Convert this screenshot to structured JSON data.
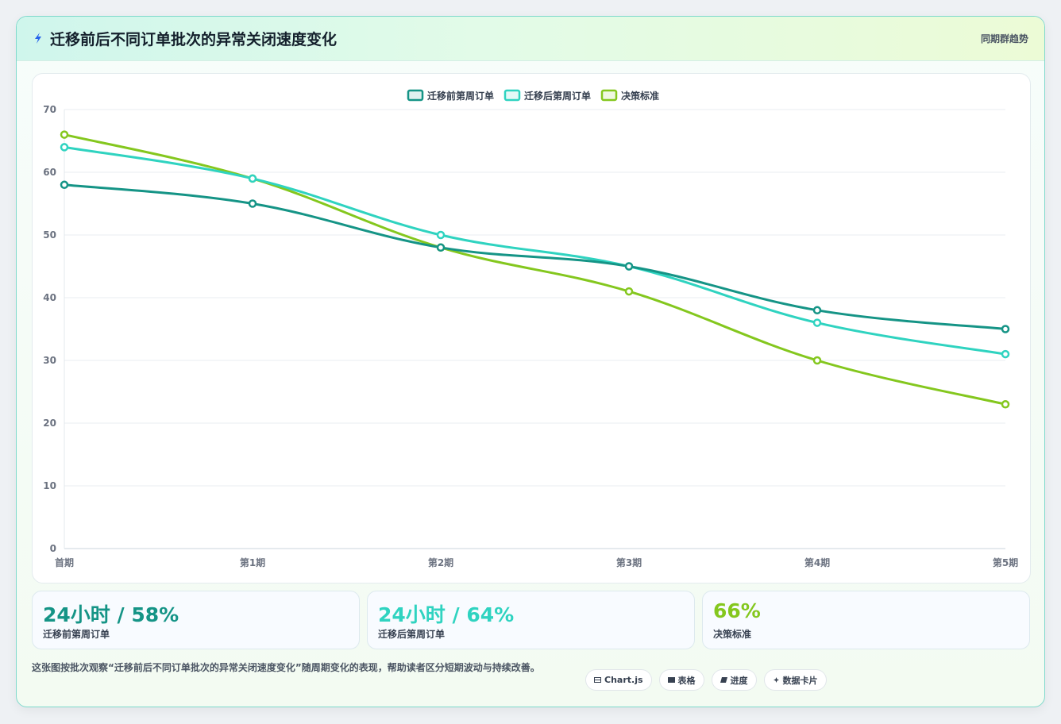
{
  "header": {
    "title": "迁移前后不同订单批次的异常关闭速度变化",
    "tag": "同期群趋势"
  },
  "colors": {
    "series_before": "#159486",
    "series_after": "#2fd3c0",
    "series_standard": "#84c71e"
  },
  "chart_data": {
    "type": "line",
    "categories": [
      "首期",
      "第1期",
      "第2期",
      "第3期",
      "第4期",
      "第5期"
    ],
    "series": [
      {
        "name": "迁移前第周订单",
        "values": [
          58,
          55,
          48,
          45,
          38,
          35
        ]
      },
      {
        "name": "迁移后第周订单",
        "values": [
          64,
          59,
          50,
          45,
          36,
          31
        ]
      },
      {
        "name": "决策标准",
        "values": [
          66,
          59,
          48,
          41,
          30,
          23
        ]
      }
    ],
    "ylim": [
      0,
      70
    ],
    "yticks": [
      0,
      10,
      20,
      30,
      40,
      50,
      60,
      70
    ],
    "grid": true,
    "legend": "top-center"
  },
  "kpis": [
    {
      "value": "24小时 / 58%",
      "label": "迁移前第周订单"
    },
    {
      "value": "24小时 / 64%",
      "label": "迁移后第周订单"
    },
    {
      "value": "66%",
      "label": "决策标准"
    }
  ],
  "description": "这张图按批次观察“迁移前后不同订单批次的异常关闭速度变化”随周期变化的表现，帮助读者区分短期波动与持续改善。",
  "chips": [
    {
      "icon": "chart-icon",
      "label": "Chart.js"
    },
    {
      "icon": "table-icon",
      "label": "表格"
    },
    {
      "icon": "progress-icon",
      "label": "进度"
    },
    {
      "icon": "card-icon",
      "label": "数据卡片"
    }
  ]
}
